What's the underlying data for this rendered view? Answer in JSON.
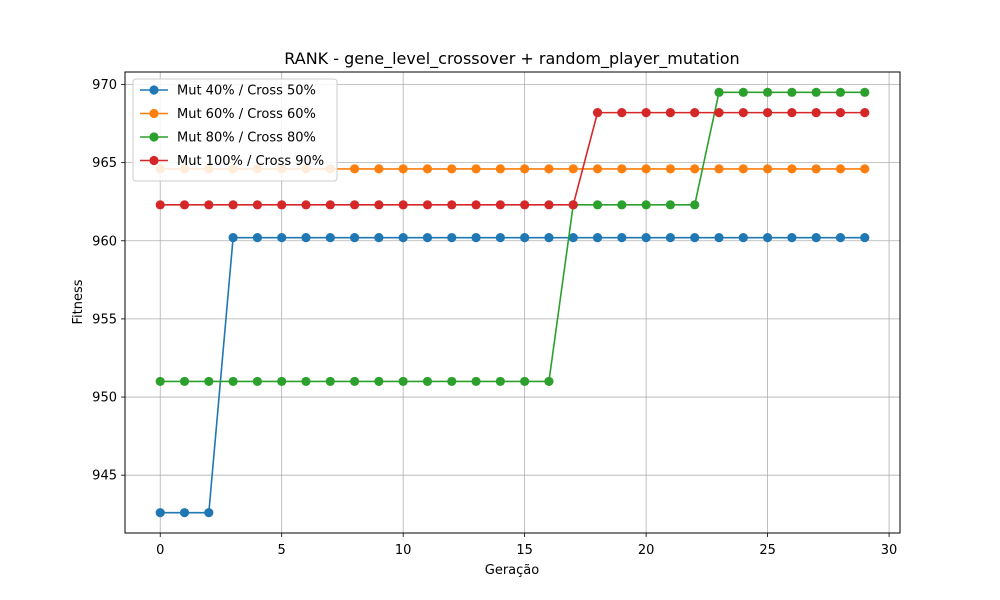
{
  "chart_data": {
    "type": "line",
    "title": "RANK - gene_level_crossover + random_player_mutation",
    "xlabel": "Geração",
    "ylabel": "Fitness",
    "xlim": [
      -1.45,
      30.45
    ],
    "ylim": [
      941.3,
      970.8
    ],
    "xticks": [
      0,
      5,
      10,
      15,
      20,
      25,
      30
    ],
    "yticks": [
      945,
      950,
      955,
      960,
      965,
      970
    ],
    "grid": true,
    "legend_position": "top-left",
    "x": [
      0,
      1,
      2,
      3,
      4,
      5,
      6,
      7,
      8,
      9,
      10,
      11,
      12,
      13,
      14,
      15,
      16,
      17,
      18,
      19,
      20,
      21,
      22,
      23,
      24,
      25,
      26,
      27,
      28,
      29
    ],
    "series": [
      {
        "name": "Mut 40% / Cross 50%",
        "color": "#1f77b4",
        "values": [
          942.6,
          942.6,
          942.6,
          960.2,
          960.2,
          960.2,
          960.2,
          960.2,
          960.2,
          960.2,
          960.2,
          960.2,
          960.2,
          960.2,
          960.2,
          960.2,
          960.2,
          960.2,
          960.2,
          960.2,
          960.2,
          960.2,
          960.2,
          960.2,
          960.2,
          960.2,
          960.2,
          960.2,
          960.2,
          960.2
        ]
      },
      {
        "name": "Mut 60% / Cross 60%",
        "color": "#ff7f0e",
        "values": [
          964.6,
          964.6,
          964.6,
          964.6,
          964.6,
          964.6,
          964.6,
          964.6,
          964.6,
          964.6,
          964.6,
          964.6,
          964.6,
          964.6,
          964.6,
          964.6,
          964.6,
          964.6,
          964.6,
          964.6,
          964.6,
          964.6,
          964.6,
          964.6,
          964.6,
          964.6,
          964.6,
          964.6,
          964.6,
          964.6
        ]
      },
      {
        "name": "Mut 80% / Cross 80%",
        "color": "#2ca02c",
        "values": [
          951.0,
          951.0,
          951.0,
          951.0,
          951.0,
          951.0,
          951.0,
          951.0,
          951.0,
          951.0,
          951.0,
          951.0,
          951.0,
          951.0,
          951.0,
          951.0,
          951.0,
          962.3,
          962.3,
          962.3,
          962.3,
          962.3,
          962.3,
          969.5,
          969.5,
          969.5,
          969.5,
          969.5,
          969.5,
          969.5
        ]
      },
      {
        "name": "Mut 100% / Cross 90%",
        "color": "#d62728",
        "values": [
          962.3,
          962.3,
          962.3,
          962.3,
          962.3,
          962.3,
          962.3,
          962.3,
          962.3,
          962.3,
          962.3,
          962.3,
          962.3,
          962.3,
          962.3,
          962.3,
          962.3,
          962.3,
          968.2,
          968.2,
          968.2,
          968.2,
          968.2,
          968.2,
          968.2,
          968.2,
          968.2,
          968.2,
          968.2,
          968.2
        ]
      }
    ]
  }
}
